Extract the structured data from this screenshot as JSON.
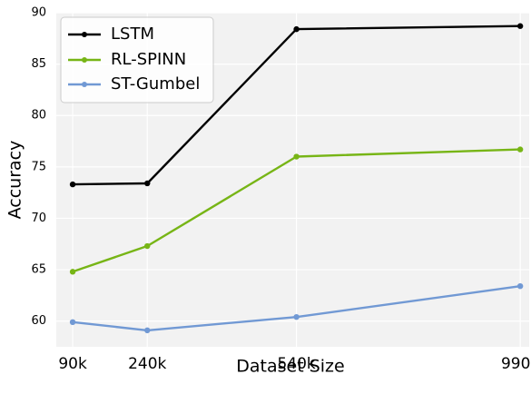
{
  "chart_data": {
    "type": "line",
    "title": "",
    "xlabel": "Dataset Size",
    "ylabel": "Accuracy",
    "x_scale": "linear",
    "x": [
      90,
      240,
      540,
      990
    ],
    "x_unit": "k",
    "x_tick_labels": [
      "90k",
      "240k",
      "540k",
      "990k"
    ],
    "xlim": [
      57,
      1008
    ],
    "ylim": [
      57.5,
      90
    ],
    "y_ticks": [
      60,
      65,
      70,
      75,
      80,
      85,
      90
    ],
    "grid": true,
    "legend_position": "top-left",
    "series": [
      {
        "name": "LSTM",
        "color": "#000000",
        "marker": "circle",
        "values": [
          73.3,
          73.4,
          88.4,
          88.7
        ]
      },
      {
        "name": "RL-SPINN",
        "color": "#77b516",
        "marker": "circle",
        "values": [
          64.8,
          67.3,
          76.0,
          76.7
        ]
      },
      {
        "name": "ST-Gumbel",
        "color": "#7199d4",
        "marker": "circle",
        "values": [
          59.9,
          59.1,
          60.4,
          63.4
        ]
      }
    ]
  }
}
